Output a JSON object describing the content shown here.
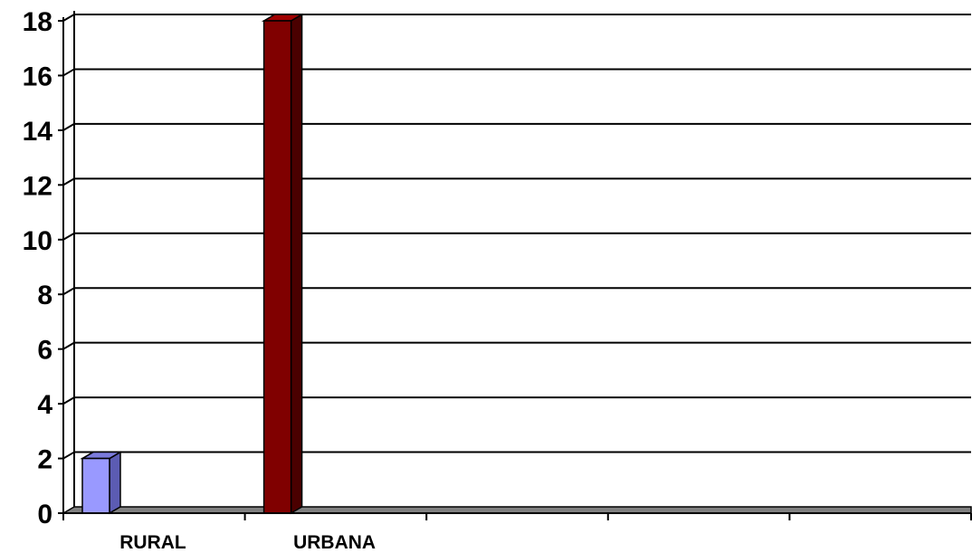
{
  "chart_data": {
    "type": "bar",
    "categories": [
      "RURAL",
      "URBANA"
    ],
    "values": [
      2,
      18
    ],
    "category_slots": 5,
    "ylim": [
      0,
      18
    ],
    "yticks": [
      0,
      2,
      4,
      6,
      8,
      10,
      12,
      14,
      16,
      18
    ],
    "title": "",
    "xlabel": "",
    "ylabel": "",
    "grid": true,
    "legend": "none",
    "three_d": true,
    "colors": {
      "bars": [
        {
          "front": "#9999ff",
          "side": "#5c5cb3",
          "top": "#7b7bdc"
        },
        {
          "front": "#800000",
          "side": "#4a0000",
          "top": "#a00000"
        }
      ],
      "floor": "#808080",
      "grid": "#000000"
    }
  }
}
